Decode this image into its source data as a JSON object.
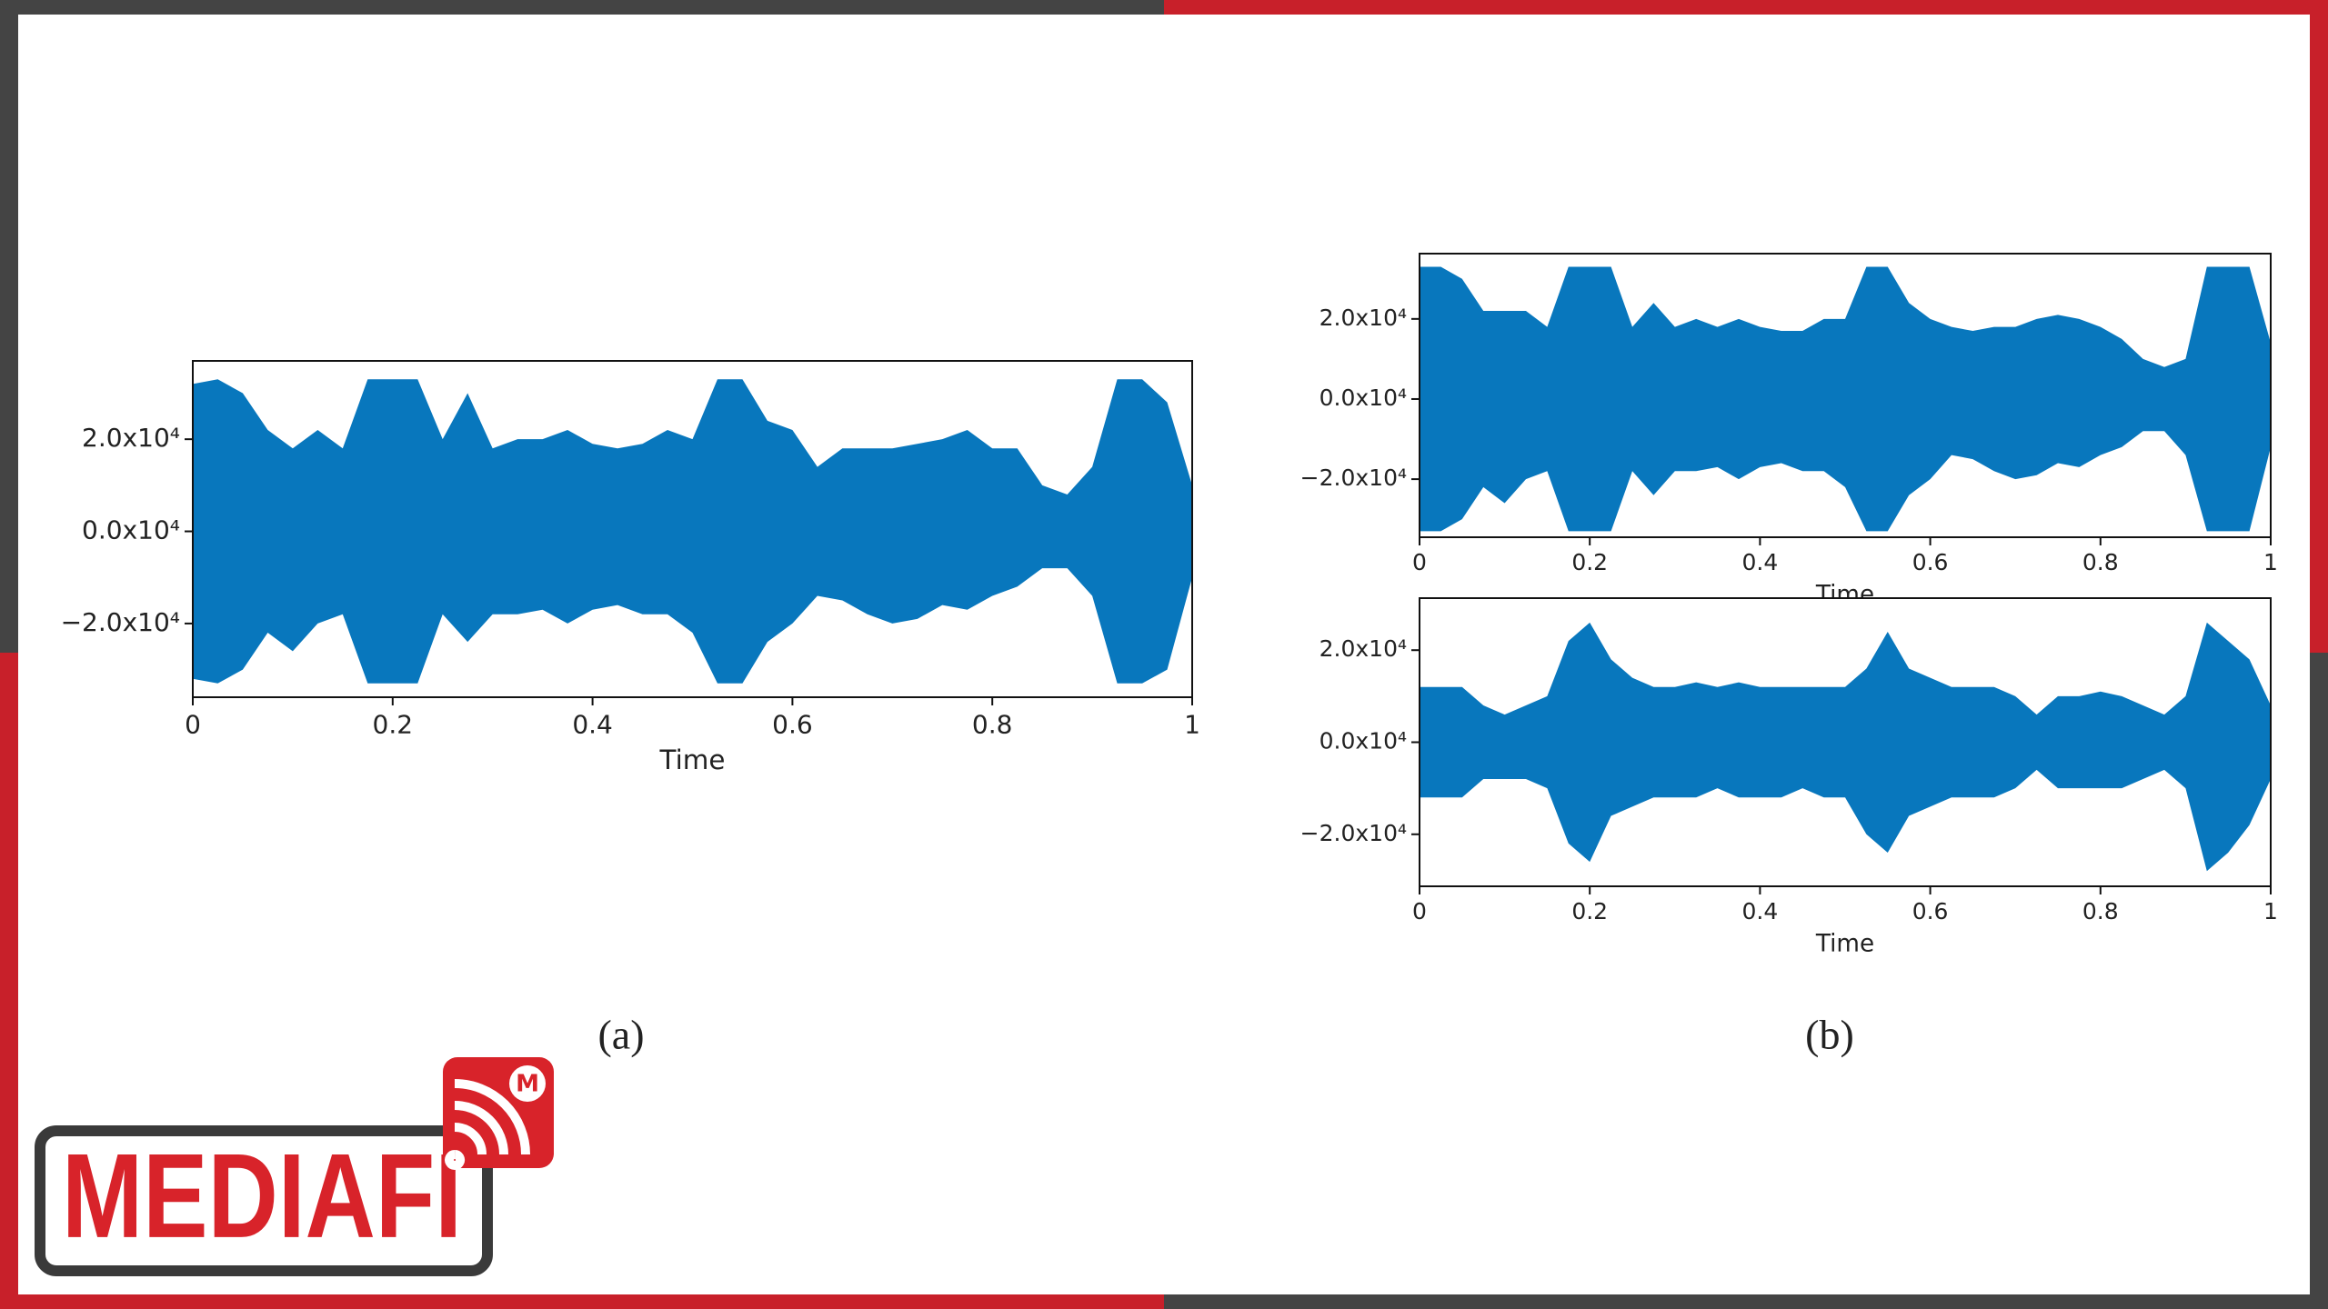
{
  "chart_data": [
    {
      "type": "waveform",
      "color": "#0877bd",
      "xlabel": "Time",
      "x": [
        0,
        0.025,
        0.05,
        0.075,
        0.1,
        0.125,
        0.15,
        0.175,
        0.2,
        0.225,
        0.25,
        0.275,
        0.3,
        0.325,
        0.35,
        0.375,
        0.4,
        0.425,
        0.45,
        0.475,
        0.5,
        0.525,
        0.55,
        0.575,
        0.6,
        0.625,
        0.65,
        0.675,
        0.7,
        0.725,
        0.75,
        0.775,
        0.8,
        0.825,
        0.85,
        0.875,
        0.9,
        0.925,
        0.95,
        0.975,
        1
      ],
      "upper": [
        32000,
        33000,
        30000,
        22000,
        18000,
        22000,
        18000,
        33000,
        33000,
        33000,
        20000,
        30000,
        18000,
        20000,
        20000,
        22000,
        19000,
        18000,
        19000,
        22000,
        20000,
        33000,
        33000,
        24000,
        22000,
        14000,
        18000,
        18000,
        18000,
        19000,
        20000,
        22000,
        18000,
        18000,
        10000,
        8000,
        14000,
        33000,
        33000,
        28000,
        10000
      ],
      "lower": [
        -32000,
        -33000,
        -30000,
        -22000,
        -26000,
        -20000,
        -18000,
        -33000,
        -33000,
        -33000,
        -18000,
        -24000,
        -18000,
        -18000,
        -17000,
        -20000,
        -17000,
        -16000,
        -18000,
        -18000,
        -22000,
        -33000,
        -33000,
        -24000,
        -20000,
        -14000,
        -15000,
        -18000,
        -20000,
        -19000,
        -16000,
        -17000,
        -14000,
        -12000,
        -8000,
        -8000,
        -14000,
        -33000,
        -33000,
        -30000,
        -10000
      ],
      "xlim": [
        0,
        1
      ],
      "ylim": [
        -36000,
        37000
      ],
      "xticks": [
        0,
        0.2,
        0.4,
        0.6,
        0.8,
        1
      ],
      "yticks": [
        {
          "value": -20000,
          "label": "−2.0x10⁴"
        },
        {
          "value": 0,
          "label": "0.0x10⁴"
        },
        {
          "value": 20000,
          "label": "2.0x10⁴"
        }
      ]
    },
    {
      "type": "waveform",
      "color": "#0877bd",
      "xlabel": "Time",
      "x": [
        0,
        0.025,
        0.05,
        0.075,
        0.1,
        0.125,
        0.15,
        0.175,
        0.2,
        0.225,
        0.25,
        0.275,
        0.3,
        0.325,
        0.35,
        0.375,
        0.4,
        0.425,
        0.45,
        0.475,
        0.5,
        0.525,
        0.55,
        0.575,
        0.6,
        0.625,
        0.65,
        0.675,
        0.7,
        0.725,
        0.75,
        0.775,
        0.8,
        0.825,
        0.85,
        0.875,
        0.9,
        0.925,
        0.95,
        0.975,
        1
      ],
      "upper": [
        33000,
        33000,
        30000,
        22000,
        22000,
        22000,
        18000,
        33000,
        33000,
        33000,
        18000,
        24000,
        18000,
        20000,
        18000,
        20000,
        18000,
        17000,
        17000,
        20000,
        20000,
        33000,
        33000,
        24000,
        20000,
        18000,
        17000,
        18000,
        18000,
        20000,
        21000,
        20000,
        18000,
        15000,
        10000,
        8000,
        10000,
        33000,
        33000,
        33000,
        14000
      ],
      "lower": [
        -33000,
        -33000,
        -30000,
        -22000,
        -26000,
        -20000,
        -18000,
        -33000,
        -33000,
        -33000,
        -18000,
        -24000,
        -18000,
        -18000,
        -17000,
        -20000,
        -17000,
        -16000,
        -18000,
        -18000,
        -22000,
        -33000,
        -33000,
        -24000,
        -20000,
        -14000,
        -15000,
        -18000,
        -20000,
        -19000,
        -16000,
        -17000,
        -14000,
        -12000,
        -8000,
        -8000,
        -14000,
        -33000,
        -33000,
        -33000,
        -12000
      ],
      "xlim": [
        0,
        1
      ],
      "ylim": [
        -34500,
        36300
      ],
      "xticks": [
        0,
        0.2,
        0.4,
        0.6,
        0.8,
        1
      ],
      "yticks": [
        {
          "value": -20000,
          "label": "−2.0x10⁴"
        },
        {
          "value": 0,
          "label": "0.0x10⁴"
        },
        {
          "value": 20000,
          "label": "2.0x10⁴"
        }
      ]
    },
    {
      "type": "waveform",
      "color": "#0877bd",
      "xlabel": "Time",
      "x": [
        0,
        0.025,
        0.05,
        0.075,
        0.1,
        0.125,
        0.15,
        0.175,
        0.2,
        0.225,
        0.25,
        0.275,
        0.3,
        0.325,
        0.35,
        0.375,
        0.4,
        0.425,
        0.45,
        0.475,
        0.5,
        0.525,
        0.55,
        0.575,
        0.6,
        0.625,
        0.65,
        0.675,
        0.7,
        0.725,
        0.75,
        0.775,
        0.8,
        0.825,
        0.85,
        0.875,
        0.9,
        0.925,
        0.95,
        0.975,
        1
      ],
      "upper": [
        12000,
        12000,
        12000,
        8000,
        6000,
        8000,
        10000,
        22000,
        26000,
        18000,
        14000,
        12000,
        12000,
        13000,
        12000,
        13000,
        12000,
        12000,
        12000,
        12000,
        12000,
        16000,
        24000,
        16000,
        14000,
        12000,
        12000,
        12000,
        10000,
        6000,
        10000,
        10000,
        11000,
        10000,
        8000,
        6000,
        10000,
        26000,
        22000,
        18000,
        8000
      ],
      "lower": [
        -12000,
        -12000,
        -12000,
        -8000,
        -8000,
        -8000,
        -10000,
        -22000,
        -26000,
        -16000,
        -14000,
        -12000,
        -12000,
        -12000,
        -10000,
        -12000,
        -12000,
        -12000,
        -10000,
        -12000,
        -12000,
        -20000,
        -24000,
        -16000,
        -14000,
        -12000,
        -12000,
        -12000,
        -10000,
        -6000,
        -10000,
        -10000,
        -10000,
        -10000,
        -8000,
        -6000,
        -10000,
        -28000,
        -24000,
        -18000,
        -8000
      ],
      "xlim": [
        0,
        1
      ],
      "ylim": [
        -31300,
        31300
      ],
      "xticks": [
        0,
        0.2,
        0.4,
        0.6,
        0.8,
        1
      ],
      "yticks": [
        {
          "value": -20000,
          "label": "−2.0x10⁴"
        },
        {
          "value": 0,
          "label": "0.0x10⁴"
        },
        {
          "value": 20000,
          "label": "2.0x10⁴"
        }
      ]
    }
  ],
  "captions": [
    "(a)",
    "(b)"
  ],
  "logo": {
    "text": "MEDIAFI",
    "badge": "M"
  }
}
